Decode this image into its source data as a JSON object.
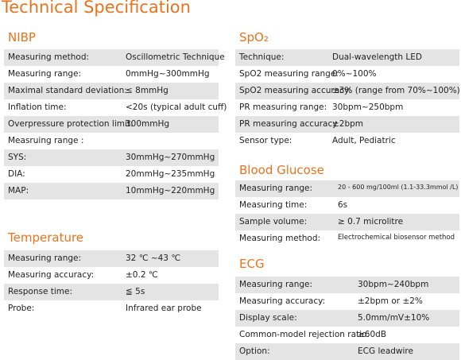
{
  "title": "Technical Specification",
  "sections": [
    {
      "heading": "NIBP",
      "rows": [
        [
          "Measuring method:",
          "Oscillometric Technique"
        ],
        [
          "Measuring range:",
          "0mmHg~300mmHg"
        ],
        [
          "Maximal standard deviation:",
          "≤ 8mmHg"
        ],
        [
          "Inflation time:",
          "<20s (typical adult cuff)"
        ],
        [
          "Overpressure protection limit:",
          "300mmHg"
        ],
        [
          "Measruing range :",
          ""
        ],
        [
          "SYS:",
          "30mmHg~270mmHg"
        ],
        [
          "DIA:",
          "20mmHg~235mmHg"
        ],
        [
          "MAP:",
          "10mmHg~220mmHg"
        ]
      ]
    },
    {
      "heading": "Temperature",
      "rows": [
        [
          "Measuring range:",
          "32 ℃ ~43 ℃"
        ],
        [
          "Measuring accuracy:",
          "±0.2 ℃"
        ],
        [
          "Response time:",
          "≦ 5s"
        ],
        [
          "Probe:",
          "Infrared ear probe"
        ]
      ]
    },
    {
      "heading": "SpO₂",
      "rows": [
        [
          "Technique:",
          "Dual-wavelength LED"
        ],
        [
          "SpO2 measuring range:",
          "0%~100%"
        ],
        [
          "SpO2 measuring accuracy:",
          "±3% (range from 70%~100%)"
        ],
        [
          "PR measuring range:",
          "30bpm~250bpm"
        ],
        [
          "PR measuring accuracy",
          "±2bpm"
        ],
        [
          "Sensor type:",
          "Adult, Pediatric"
        ]
      ]
    },
    {
      "heading": "Blood Glucose",
      "rows": [
        [
          "Measuring range:",
          "20 - 600 mg/100ml (1.1-33.3mmol /L)"
        ],
        [
          "Measuring time:",
          "6s"
        ],
        [
          "Sample volume:",
          "≥ 0.7 microlitre"
        ],
        [
          "Measuring method:",
          "Electrochemical biosensor method"
        ]
      ]
    },
    {
      "heading": "ECG",
      "rows": [
        [
          "Measuring range:",
          "30bpm~240bpm"
        ],
        [
          "Measuring accuracy:",
          "±2bpm or ±2%"
        ],
        [
          "Display scale:",
          "5.0mm/mV±10%"
        ],
        [
          "Common-model rejection ratio:",
          "≥60dB"
        ],
        [
          "Option:",
          "ECG leadwire"
        ]
      ]
    }
  ]
}
